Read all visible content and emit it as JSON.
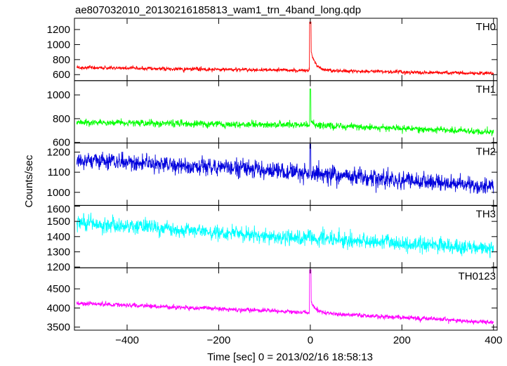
{
  "chart_data": {
    "type": "line",
    "title": "ae807032010_20130216185813_wam1_trn_4band_long.qdp",
    "xlabel": "Time [sec] 0 = 2013/02/16 18:58:13",
    "ylabel": "Counts/sec",
    "xlim": [
      -515,
      408
    ],
    "x_ticks": [
      -400,
      -200,
      0,
      200,
      400
    ],
    "x_tick_labels": [
      "−400",
      "−200",
      "0",
      "200",
      "400"
    ],
    "grid": false,
    "sampling": {
      "x_start": -510,
      "x_end": 400,
      "step_sec": 0.5
    },
    "panels": [
      {
        "label": "TH0",
        "color": "#ff0000",
        "ylim": [
          520,
          1350
        ],
        "y_ticks": [
          600,
          800,
          1000,
          1200
        ],
        "y_tick_labels": [
          "600",
          "800",
          "1000",
          "1200"
        ],
        "trend": {
          "x": [
            -510,
            0,
            400
          ],
          "y": [
            695,
            655,
            615
          ]
        },
        "noise_sd": 18,
        "burst": {
          "x0": 0,
          "width_sec": 3,
          "peak": 1300,
          "tail_amp": 300,
          "tail_decay_sec": 10
        }
      },
      {
        "label": "TH1",
        "color": "#00ff00",
        "ylim": [
          595,
          1120
        ],
        "y_ticks": [
          600,
          800,
          1000
        ],
        "y_tick_labels": [
          "600",
          "800",
          "1000"
        ],
        "trend": {
          "x": [
            -510,
            0,
            400
          ],
          "y": [
            770,
            745,
            690
          ]
        },
        "noise_sd": 22,
        "burst": {
          "x0": 0,
          "width_sec": 2,
          "peak": 1050,
          "tail_amp": 60,
          "tail_decay_sec": 6
        }
      },
      {
        "label": "TH2",
        "color": "#0000dd",
        "ylim": [
          935,
          1245
        ],
        "y_ticks": [
          1000,
          1100,
          1200
        ],
        "y_tick_labels": [
          "1000",
          "1100",
          "1200"
        ],
        "trend": {
          "x": [
            -510,
            0,
            400
          ],
          "y": [
            1165,
            1095,
            1025
          ]
        },
        "noise_sd": 32,
        "burst": {
          "x0": 0,
          "width_sec": 2,
          "peak": 1240,
          "tail_amp": 0,
          "tail_decay_sec": 1
        }
      },
      {
        "label": "TH3",
        "color": "#00ffff",
        "ylim": [
          1195,
          1605
        ],
        "y_ticks": [
          1200,
          1300,
          1400,
          1500,
          1600
        ],
        "y_tick_labels": [
          "1200",
          "1300",
          "1400",
          "1500",
          "1600"
        ],
        "trend": {
          "x": [
            -510,
            0,
            400
          ],
          "y": [
            1490,
            1390,
            1320
          ]
        },
        "noise_sd": 38,
        "burst": {
          "x0": 0,
          "width_sec": 2,
          "peak": 1440,
          "tail_amp": 0,
          "tail_decay_sec": 1
        }
      },
      {
        "label": "TH0123",
        "color": "#ff00ff",
        "ylim": [
          3420,
          5050
        ],
        "y_ticks": [
          3500,
          4000,
          4500
        ],
        "y_tick_labels": [
          "3500",
          "4000",
          "4500"
        ],
        "trend": {
          "x": [
            -510,
            0,
            400
          ],
          "y": [
            4130,
            3880,
            3620
          ]
        },
        "noise_sd": 45,
        "burst": {
          "x0": 0,
          "width_sec": 3,
          "peak": 5000,
          "tail_amp": 350,
          "tail_decay_sec": 10
        }
      }
    ]
  }
}
